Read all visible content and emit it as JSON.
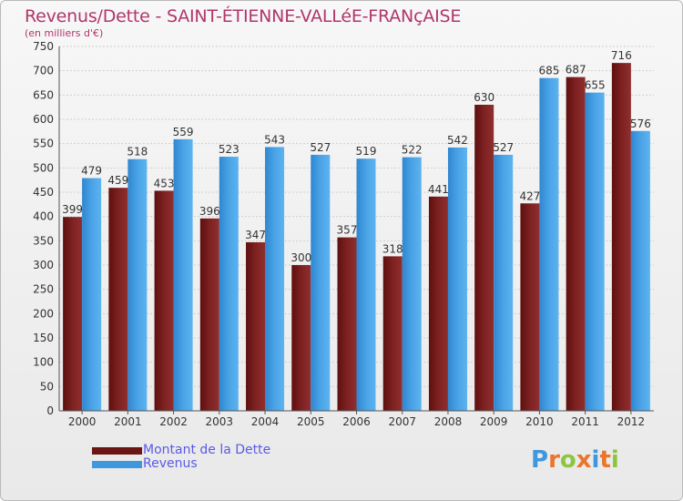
{
  "title": "Revenus/Dette - SAINT-ÉTIENNE-VALLéE-FRANçAISE",
  "subtitle": "(en milliers d'€)",
  "brand": "Proxiti",
  "colors": {
    "dette": "#7a1c1c",
    "dette_light": "#8f2b2b",
    "revenus": "#3f97dd",
    "revenus_light": "#5ab0ee",
    "title": "#b0366a",
    "legend_text": "#5a5ae6"
  },
  "chart_data": {
    "type": "bar",
    "categories": [
      "2000",
      "2001",
      "2002",
      "2003",
      "2004",
      "2005",
      "2006",
      "2007",
      "2008",
      "2009",
      "2010",
      "2011",
      "2012"
    ],
    "series": [
      {
        "name": "Montant de la Dette",
        "values": [
          399,
          459,
          453,
          396,
          347,
          300,
          357,
          318,
          441,
          630,
          427,
          687,
          716
        ]
      },
      {
        "name": "Revenus",
        "values": [
          479,
          518,
          559,
          523,
          543,
          527,
          519,
          522,
          542,
          527,
          685,
          655,
          576
        ]
      }
    ],
    "ylim": [
      0,
      750
    ],
    "yticks": [
      0,
      50,
      100,
      150,
      200,
      250,
      300,
      350,
      400,
      450,
      500,
      550,
      600,
      650,
      700,
      750
    ],
    "grid": true,
    "legend": "bottom-left"
  }
}
